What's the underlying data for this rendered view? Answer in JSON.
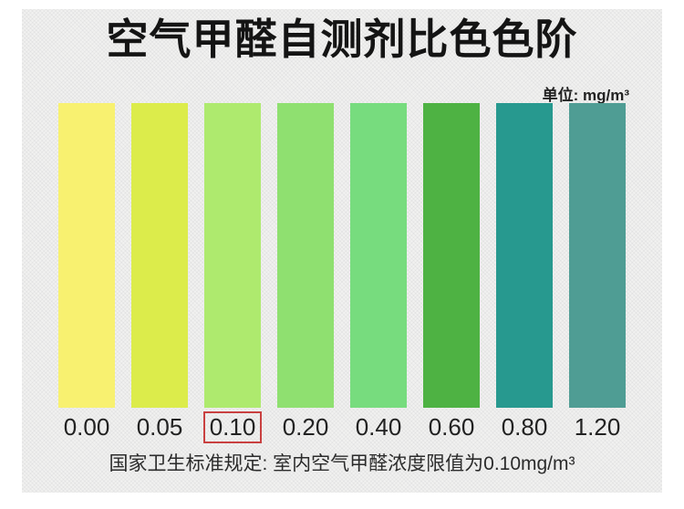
{
  "header": {
    "title": "空气甲醛自测剂比色色阶",
    "unit_label": "单位: mg/m³"
  },
  "chart_data": {
    "type": "heatmap",
    "title": "空气甲醛自测剂比色色阶",
    "unit": "mg/m³",
    "categories": [
      "0.00",
      "0.05",
      "0.10",
      "0.20",
      "0.40",
      "0.60",
      "0.80",
      "1.20"
    ],
    "colors": [
      "#f8f170",
      "#dcec4b",
      "#aeea6e",
      "#8fe070",
      "#77dc7e",
      "#4eb243",
      "#27998f",
      "#4f9d94"
    ],
    "highlighted_value": "0.10",
    "highlight_box_color": "#c94040",
    "legend_position": "none",
    "grid": false
  },
  "footer": {
    "note": "国家卫生标准规定: 室内空气甲醛浓度限值为0.10mg/m³"
  }
}
